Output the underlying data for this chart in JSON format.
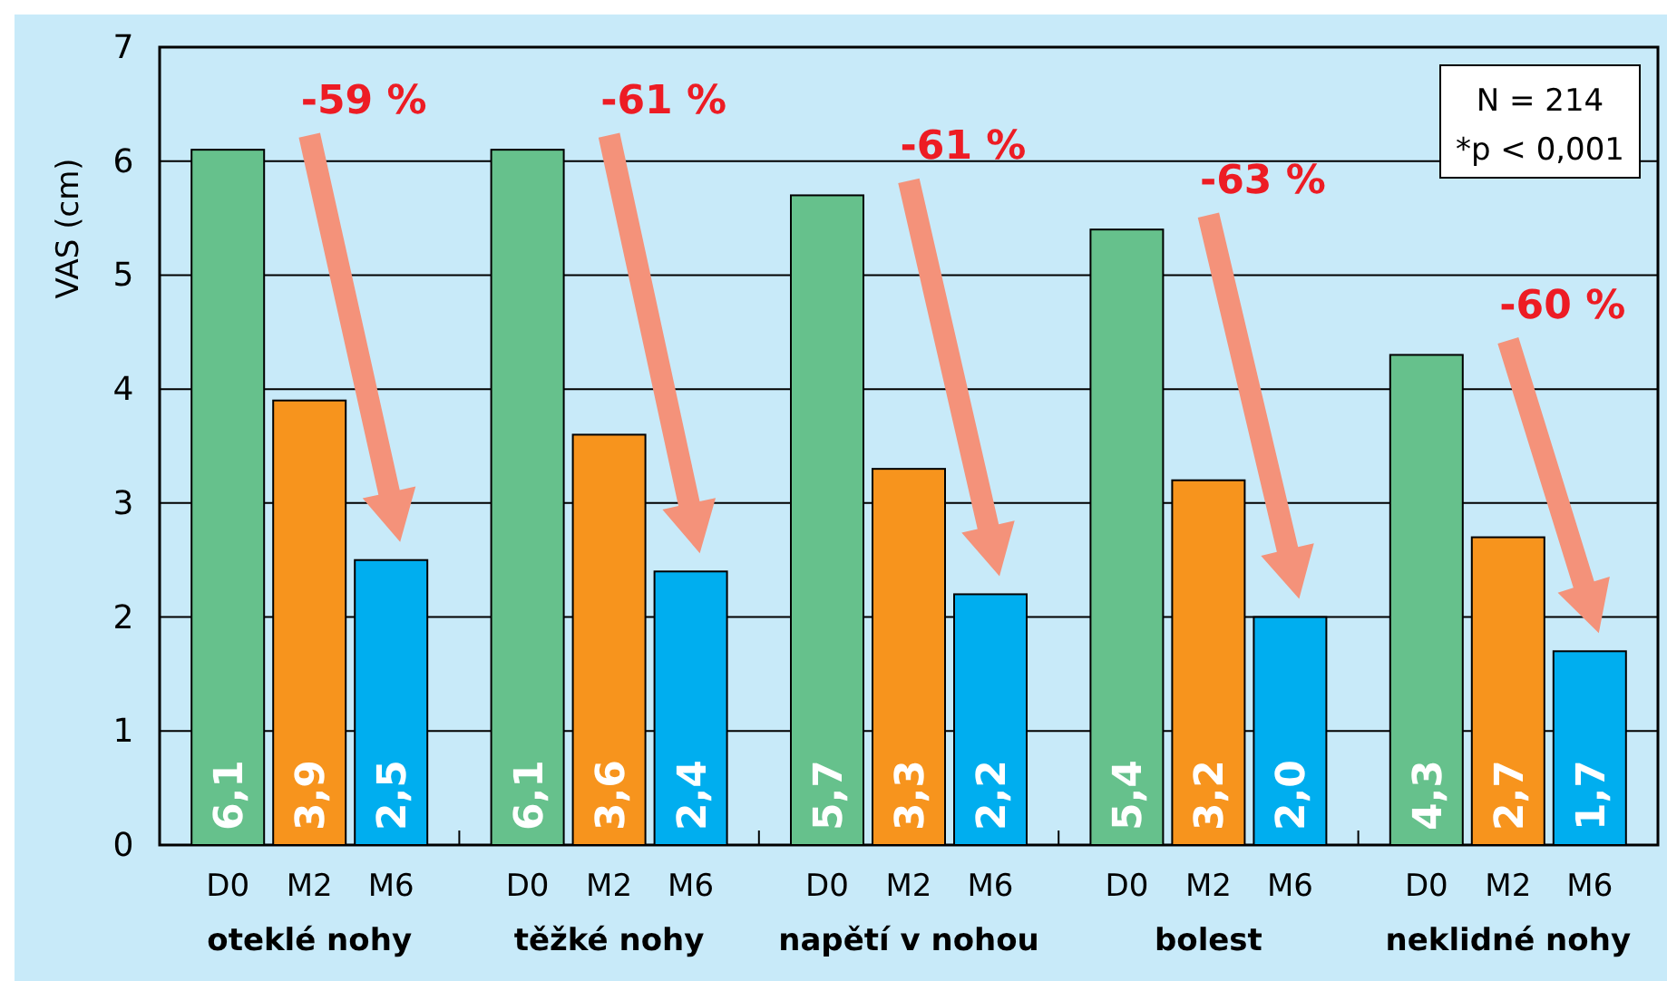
{
  "chart_data": {
    "type": "bar",
    "ylabel": "VAS (cm)",
    "categories": [
      "oteklé nohy",
      "těžké nohy",
      "napětí v nohou",
      "bolest",
      "neklidné nohy"
    ],
    "series": [
      {
        "name": "D0",
        "color": "#66c18c",
        "values": [
          6.1,
          6.1,
          5.7,
          5.4,
          4.3
        ],
        "value_labels": [
          "6,1",
          "6,1",
          "5,7",
          "5,4",
          "4,3"
        ]
      },
      {
        "name": "M2",
        "color": "#f7941d",
        "values": [
          3.9,
          3.6,
          3.3,
          3.2,
          2.7
        ],
        "value_labels": [
          "3,9",
          "3,6",
          "3,3",
          "3,2",
          "2,7"
        ]
      },
      {
        "name": "M6",
        "color": "#00aeef",
        "values": [
          2.5,
          2.4,
          2.2,
          2.0,
          1.7
        ],
        "value_labels": [
          "2,5",
          "2,4",
          "2,2",
          "2,0",
          "1,7"
        ]
      }
    ],
    "ylim": [
      0,
      7
    ],
    "yticks": [
      0,
      1,
      2,
      3,
      4,
      5,
      6,
      7
    ],
    "grid": "y",
    "annotations": [
      "-59 %",
      "-61 %",
      "-61 %",
      "-63 %",
      "-60 %",
      "N = 214",
      "*p < 0,001"
    ]
  }
}
